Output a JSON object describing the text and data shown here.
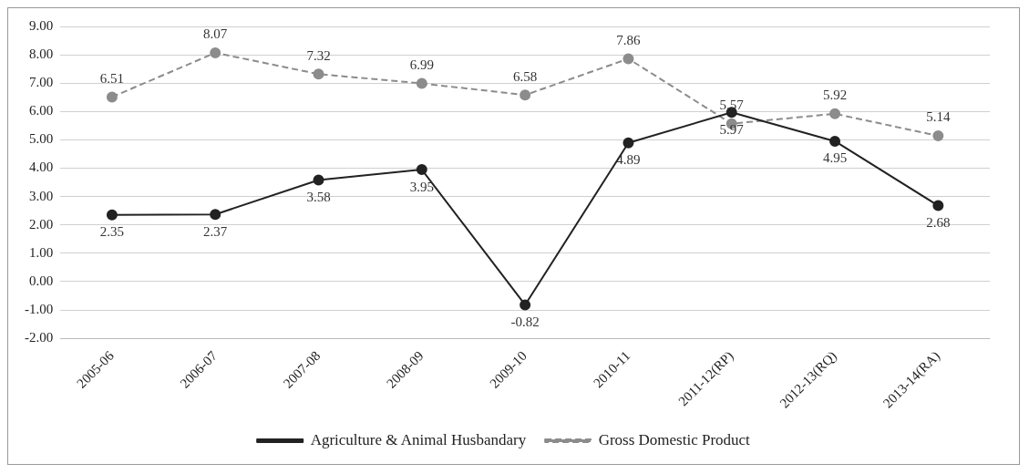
{
  "chart_data": {
    "type": "line",
    "categories": [
      "2005-06",
      "2006-07",
      "2007-08",
      "2008-09",
      "2009-10",
      "2010-11",
      "2011-12(RP)",
      "2012-13(RQ)",
      "2013-14(RA)"
    ],
    "series": [
      {
        "name": "Agriculture & Animal Husbandary",
        "color": "#222222",
        "line_style": "solid",
        "values": [
          2.35,
          2.37,
          3.58,
          3.95,
          -0.82,
          4.89,
          5.97,
          4.95,
          2.68
        ]
      },
      {
        "name": "Gross Domestic Product",
        "color": "#8c8c8c",
        "line_style": "dashed",
        "values": [
          6.51,
          8.07,
          7.32,
          6.99,
          6.58,
          7.86,
          5.57,
          5.92,
          5.14
        ]
      }
    ],
    "ylim": [
      -2,
      9
    ],
    "yticks": [
      {
        "value": -2,
        "label": "-2.00"
      },
      {
        "value": -1,
        "label": "-1.00"
      },
      {
        "value": 0,
        "label": "0.00"
      },
      {
        "value": 1,
        "label": "1.00"
      },
      {
        "value": 2,
        "label": "2.00"
      },
      {
        "value": 3,
        "label": "3.00"
      },
      {
        "value": 4,
        "label": "4.00"
      },
      {
        "value": 5,
        "label": "5.00"
      },
      {
        "value": 6,
        "label": "6.00"
      },
      {
        "value": 7,
        "label": "7.00"
      },
      {
        "value": 8,
        "label": "8.00"
      },
      {
        "value": 9,
        "label": "9.00"
      }
    ],
    "grid": "y",
    "legend": "bottom",
    "marker": "circle",
    "data_labels": true
  }
}
